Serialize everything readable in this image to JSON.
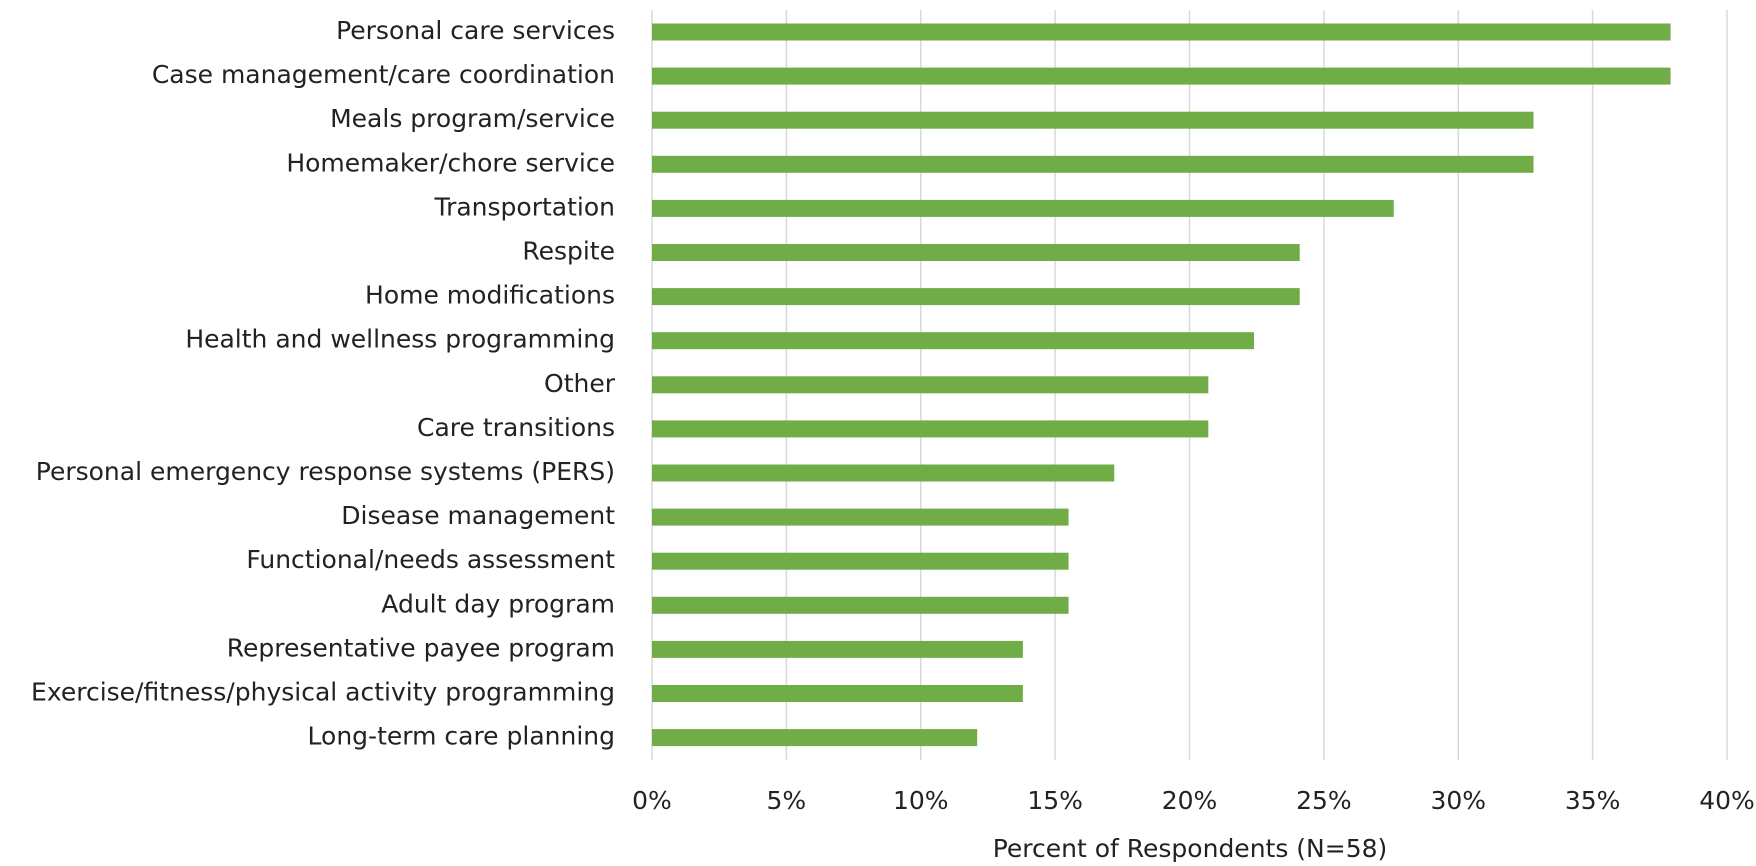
{
  "chart_data": {
    "type": "barh",
    "x_label": "Percent of Respondents (N=58)",
    "categories": [
      "Personal care services",
      "Case management/care coordination",
      "Meals program/service",
      "Homemaker/chore service",
      "Transportation",
      "Respite",
      "Home modifications",
      "Health and wellness programming",
      "Other",
      "Care transitions",
      "Personal emergency response systems (PERS)",
      "Disease management",
      "Functional/needs assessment",
      "Adult day program",
      "Representative payee program",
      "Exercise/fitness/physical activity programming",
      "Long-term care planning"
    ],
    "values": [
      37.9,
      37.9,
      32.8,
      32.8,
      27.6,
      24.1,
      24.1,
      22.4,
      20.7,
      20.7,
      17.2,
      15.5,
      15.5,
      15.5,
      13.8,
      13.8,
      12.1
    ],
    "color": "#70ad47",
    "xlim": [
      0,
      40
    ],
    "xticks": [
      {
        "value": 0,
        "label": "0%"
      },
      {
        "value": 5,
        "label": "5%"
      },
      {
        "value": 10,
        "label": "10%"
      },
      {
        "value": 15,
        "label": "15%"
      },
      {
        "value": 20,
        "label": "20%"
      },
      {
        "value": 25,
        "label": "25%"
      },
      {
        "value": 30,
        "label": "30%"
      },
      {
        "value": 35,
        "label": "35%"
      },
      {
        "value": 40,
        "label": "40%"
      }
    ],
    "grid": true
  }
}
